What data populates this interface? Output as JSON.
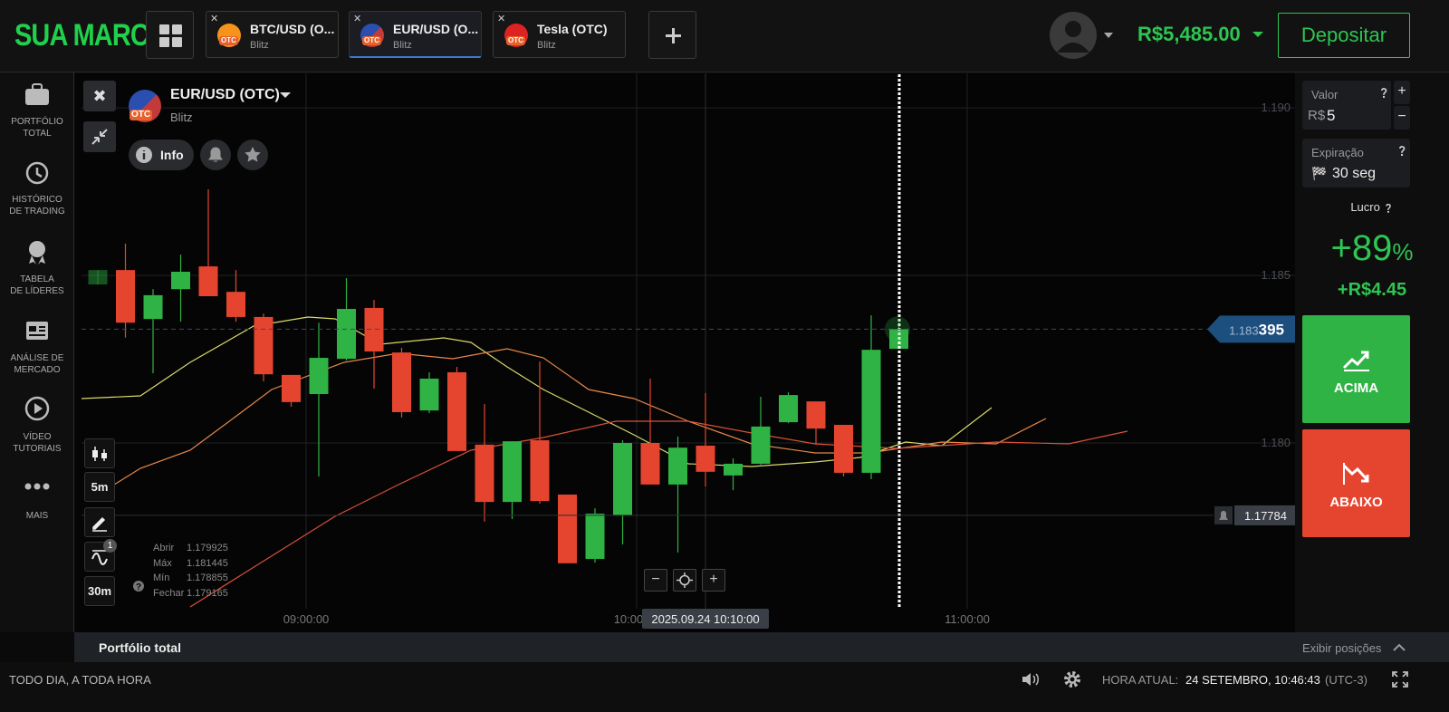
{
  "header": {
    "brand": "SUA MARCA",
    "tabs": [
      {
        "name": "BTC/USD (O...",
        "sub": "Blitz",
        "badge": "OTC"
      },
      {
        "name": "EUR/USD (O...",
        "sub": "Blitz",
        "badge": "OTC"
      },
      {
        "name": "Tesla (OTC)",
        "sub": "Blitz",
        "badge": "OTC"
      }
    ],
    "balance": "R$5,485.00",
    "deposit": "Depositar"
  },
  "sidebar": [
    {
      "lines": [
        "PORTFÓLIO",
        "TOTAL"
      ]
    },
    {
      "lines": [
        "HISTÓRICO",
        "DE TRADING"
      ]
    },
    {
      "lines": [
        "TABELA",
        "DE LÍDERES"
      ]
    },
    {
      "lines": [
        "ANÁLISE DE",
        "MERCADO"
      ]
    },
    {
      "lines": [
        "VÍDEO",
        "TUTORIAIS"
      ]
    },
    {
      "lines": [
        "MAIS"
      ]
    }
  ],
  "asset": {
    "name": "EUR/USD (OTC)",
    "sub": "Blitz",
    "badge": "OTC",
    "info": "Info"
  },
  "tools": {
    "timeframe": "5m",
    "zoom": "30m",
    "indicator_count": "1"
  },
  "ohlc_panel": [
    {
      "label": "Abrir",
      "value": "1.179925"
    },
    {
      "label": "Máx",
      "value": "1.181445"
    },
    {
      "label": "Mín",
      "value": "1.178855"
    },
    {
      "label": "Fechar",
      "value": "1.179165"
    }
  ],
  "chart": {
    "type": "candlestick",
    "up_color": "#2fb344",
    "down_color": "#e5452f",
    "ylim": [
      1.17435,
      1.19103
    ],
    "yticks": [
      {
        "value": 1.19,
        "label": "1.190"
      },
      1.185,
      {
        "value": 1.18,
        "label": "1.180"
      }
    ],
    "xticks": [
      "09:00:00",
      "10:00:00",
      "11:00:00"
    ],
    "candles": [
      {
        "open": 1.18473,
        "high": 1.18516,
        "low": 1.18473,
        "close": 1.18516
      },
      {
        "open": 1.18516,
        "high": 1.18595,
        "low": 1.18314,
        "close": 1.18359
      },
      {
        "open": 1.1837,
        "high": 1.18459,
        "low": 1.18208,
        "close": 1.18441
      },
      {
        "open": 1.18459,
        "high": 1.18562,
        "low": 1.18362,
        "close": 1.18511
      },
      {
        "open": 1.18527,
        "high": 1.18757,
        "low": 1.18438,
        "close": 1.18438
      },
      {
        "open": 1.18451,
        "high": 1.18516,
        "low": 1.18362,
        "close": 1.18376
      },
      {
        "open": 1.18376,
        "high": 1.18386,
        "low": 1.18184,
        "close": 1.18205
      },
      {
        "open": 1.18203,
        "high": 1.18203,
        "low": 1.18108,
        "close": 1.18122
      },
      {
        "open": 1.18146,
        "high": 1.18359,
        "low": 1.179,
        "close": 1.18254
      },
      {
        "open": 1.18251,
        "high": 1.18492,
        "low": 1.18246,
        "close": 1.184
      },
      {
        "open": 1.18403,
        "high": 1.18427,
        "low": 1.18162,
        "close": 1.18273
      },
      {
        "open": 1.1827,
        "high": 1.18284,
        "low": 1.18076,
        "close": 1.18092
      },
      {
        "open": 1.18097,
        "high": 1.18211,
        "low": 1.18089,
        "close": 1.18192
      },
      {
        "open": 1.18211,
        "high": 1.18227,
        "low": 1.17976,
        "close": 1.17976
      },
      {
        "open": 1.17995,
        "high": 1.18116,
        "low": 1.17765,
        "close": 1.17824
      },
      {
        "open": 1.17824,
        "high": 1.18005,
        "low": 1.17773,
        "close": 1.18005
      },
      {
        "open": 1.18008,
        "high": 1.18243,
        "low": 1.17819,
        "close": 1.17827
      },
      {
        "open": 1.17846,
        "high": 1.17846,
        "low": 1.17641,
        "close": 1.17641
      },
      {
        "open": 1.17654,
        "high": 1.17805,
        "low": 1.17643,
        "close": 1.17789
      },
      {
        "open": 1.17784,
        "high": 1.18008,
        "low": 1.17697,
        "close": 1.18
      },
      {
        "open": 1.18,
        "high": 1.18192,
        "low": 1.17876,
        "close": 1.17876
      },
      {
        "open": 1.17876,
        "high": 1.18019,
        "low": 1.17673,
        "close": 1.17986
      },
      {
        "open": 1.17992,
        "high": 1.18149,
        "low": 1.1787,
        "close": 1.17914
      },
      {
        "open": 1.17903,
        "high": 1.17954,
        "low": 1.17859,
        "close": 1.17938
      },
      {
        "open": 1.17938,
        "high": 1.18138,
        "low": 1.17935,
        "close": 1.18049
      },
      {
        "open": 1.18062,
        "high": 1.18151,
        "low": 1.18059,
        "close": 1.18143
      },
      {
        "open": 1.18124,
        "high": 1.18124,
        "low": 1.17995,
        "close": 1.18043
      },
      {
        "open": 1.18054,
        "high": 1.18054,
        "low": 1.179,
        "close": 1.17911
      },
      {
        "open": 1.17911,
        "high": 1.18381,
        "low": 1.17892,
        "close": 1.18278
      },
      {
        "open": 1.18281,
        "high": 1.18359,
        "low": 1.18281,
        "close": 1.183395
      }
    ],
    "current_price": {
      "value": 1.183395,
      "label_main": "1.183",
      "label_bold": "395"
    },
    "alert_price": 1.17784,
    "crosshair_time": "2025.09.24 10:10:00"
  },
  "trade_panel": {
    "amount_label": "Valor",
    "currency": "R$",
    "amount": "5",
    "expiry_label": "Expiração",
    "expiry": "30 seg",
    "profit_label": "Lucro",
    "profit_pct": "+89",
    "pct_sign": "%",
    "profit_value": "+R$4.45",
    "up": "ACIMA",
    "down": "ABAIXO"
  },
  "portfolio_bar": {
    "title": "Portfólio total",
    "link": "Exibir posições"
  },
  "footer": {
    "slogan": "TODO DIA, A TODA HORA",
    "time_label": "HORA ATUAL:",
    "time": "24 SETEMBRO, 10:46:43",
    "tz": "(UTC-3)"
  }
}
